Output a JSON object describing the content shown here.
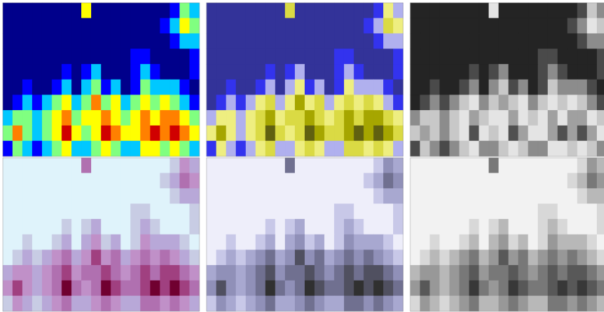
{
  "chart_data": [
    {
      "type": "contour",
      "colors": [
        "#00008b",
        "#0000ff",
        "#00c8ff",
        "#80ff80",
        "#ffff00",
        "#ff8000",
        "#d00000"
      ],
      "z": [
        [
          0,
          0,
          0,
          0,
          0,
          0,
          0,
          0,
          4,
          0,
          0,
          0,
          0,
          0,
          0,
          0,
          0,
          1,
          3,
          2
        ],
        [
          0,
          0,
          0,
          0,
          0,
          0,
          0,
          0,
          0,
          0,
          0,
          0,
          0,
          0,
          0,
          0,
          1,
          2,
          4,
          3
        ],
        [
          0,
          0,
          0,
          0,
          0,
          0,
          0,
          0,
          0,
          0,
          0,
          0,
          0,
          0,
          0,
          0,
          0,
          1,
          2,
          2
        ],
        [
          0,
          0,
          0,
          0,
          0,
          0,
          0,
          0,
          0,
          0,
          0,
          0,
          0,
          1,
          1,
          0,
          0,
          0,
          0,
          1
        ],
        [
          0,
          0,
          0,
          0,
          0,
          0,
          1,
          0,
          1,
          2,
          0,
          0,
          0,
          1,
          2,
          1,
          0,
          0,
          0,
          1
        ],
        [
          0,
          0,
          1,
          0,
          0,
          1,
          2,
          0,
          2,
          3,
          1,
          2,
          0,
          1,
          3,
          2,
          2,
          2,
          1,
          0
        ],
        [
          0,
          1,
          2,
          1,
          2,
          3,
          4,
          2,
          3,
          5,
          3,
          4,
          2,
          3,
          4,
          3,
          4,
          3,
          2,
          1
        ],
        [
          2,
          3,
          3,
          2,
          3,
          4,
          5,
          3,
          4,
          4,
          5,
          4,
          3,
          4,
          5,
          4,
          5,
          5,
          4,
          3
        ],
        [
          3,
          5,
          3,
          2,
          3,
          4,
          6,
          4,
          3,
          4,
          6,
          5,
          4,
          4,
          5,
          6,
          5,
          6,
          5,
          4
        ],
        [
          1,
          3,
          2,
          1,
          2,
          3,
          4,
          2,
          2,
          3,
          4,
          3,
          2,
          2,
          4,
          4,
          3,
          4,
          3,
          2
        ]
      ]
    },
    {
      "type": "contour",
      "colors": [
        "#333399",
        "#3333ee",
        "#b0b0ee",
        "#eeee80",
        "#dada44",
        "#a6a600",
        "#606010"
      ],
      "z": [
        [
          0,
          0,
          0,
          0,
          0,
          0,
          0,
          0,
          4,
          0,
          0,
          0,
          0,
          0,
          0,
          0,
          0,
          1,
          3,
          2
        ],
        [
          0,
          0,
          0,
          0,
          0,
          0,
          0,
          0,
          0,
          0,
          0,
          0,
          0,
          0,
          0,
          0,
          1,
          2,
          4,
          3
        ],
        [
          0,
          0,
          0,
          0,
          0,
          0,
          0,
          0,
          0,
          0,
          0,
          0,
          0,
          0,
          0,
          0,
          0,
          1,
          2,
          2
        ],
        [
          0,
          0,
          0,
          0,
          0,
          0,
          0,
          0,
          0,
          0,
          0,
          0,
          0,
          1,
          1,
          0,
          0,
          0,
          0,
          1
        ],
        [
          0,
          0,
          0,
          0,
          0,
          0,
          1,
          0,
          1,
          2,
          0,
          0,
          0,
          1,
          2,
          1,
          0,
          0,
          0,
          1
        ],
        [
          0,
          0,
          1,
          0,
          0,
          1,
          2,
          0,
          2,
          3,
          1,
          2,
          0,
          1,
          3,
          2,
          2,
          2,
          1,
          0
        ],
        [
          0,
          1,
          2,
          1,
          2,
          3,
          4,
          2,
          3,
          5,
          3,
          4,
          2,
          3,
          4,
          3,
          4,
          3,
          2,
          1
        ],
        [
          2,
          3,
          3,
          2,
          3,
          4,
          5,
          3,
          4,
          4,
          5,
          4,
          3,
          4,
          5,
          4,
          5,
          5,
          4,
          3
        ],
        [
          3,
          5,
          3,
          2,
          3,
          4,
          6,
          4,
          3,
          4,
          6,
          5,
          4,
          4,
          5,
          6,
          5,
          6,
          5,
          4
        ],
        [
          1,
          3,
          2,
          1,
          2,
          3,
          4,
          2,
          2,
          3,
          4,
          3,
          2,
          2,
          4,
          4,
          3,
          4,
          3,
          2
        ]
      ]
    },
    {
      "type": "contour",
      "colors": [
        "#242424",
        "#4a4a4a",
        "#8c8c8c",
        "#c8c8c8",
        "#e4e4e4",
        "#a0a0a0",
        "#505050"
      ],
      "z": [
        [
          0,
          0,
          0,
          0,
          0,
          0,
          0,
          0,
          4,
          0,
          0,
          0,
          0,
          0,
          0,
          0,
          0,
          1,
          3,
          2
        ],
        [
          0,
          0,
          0,
          0,
          0,
          0,
          0,
          0,
          0,
          0,
          0,
          0,
          0,
          0,
          0,
          0,
          1,
          2,
          4,
          3
        ],
        [
          0,
          0,
          0,
          0,
          0,
          0,
          0,
          0,
          0,
          0,
          0,
          0,
          0,
          0,
          0,
          0,
          0,
          1,
          2,
          2
        ],
        [
          0,
          0,
          0,
          0,
          0,
          0,
          0,
          0,
          0,
          0,
          0,
          0,
          0,
          1,
          1,
          0,
          0,
          0,
          0,
          1
        ],
        [
          0,
          0,
          0,
          0,
          0,
          0,
          1,
          0,
          1,
          2,
          0,
          0,
          0,
          1,
          2,
          1,
          0,
          0,
          0,
          1
        ],
        [
          0,
          0,
          1,
          0,
          0,
          1,
          2,
          0,
          2,
          3,
          1,
          2,
          0,
          1,
          3,
          2,
          2,
          2,
          1,
          0
        ],
        [
          0,
          1,
          2,
          1,
          2,
          3,
          4,
          2,
          3,
          5,
          3,
          4,
          2,
          3,
          4,
          3,
          4,
          3,
          2,
          1
        ],
        [
          2,
          3,
          3,
          2,
          3,
          4,
          5,
          3,
          4,
          4,
          5,
          4,
          3,
          4,
          5,
          4,
          5,
          5,
          4,
          3
        ],
        [
          3,
          5,
          3,
          2,
          3,
          4,
          6,
          4,
          3,
          4,
          6,
          5,
          4,
          4,
          5,
          6,
          5,
          6,
          5,
          4
        ],
        [
          1,
          3,
          2,
          1,
          2,
          3,
          4,
          2,
          2,
          3,
          4,
          3,
          2,
          2,
          4,
          4,
          3,
          4,
          3,
          2
        ]
      ]
    },
    {
      "type": "contour",
      "colors": [
        "#dff3fb",
        "#c8cce4",
        "#b8a8d8",
        "#c090c8",
        "#b070b0",
        "#a04080",
        "#700030"
      ],
      "z": [
        [
          0,
          0,
          0,
          0,
          0,
          0,
          0,
          0,
          4,
          0,
          0,
          0,
          0,
          0,
          0,
          0,
          0,
          1,
          3,
          2
        ],
        [
          0,
          0,
          0,
          0,
          0,
          0,
          0,
          0,
          0,
          0,
          0,
          0,
          0,
          0,
          0,
          0,
          1,
          2,
          4,
          3
        ],
        [
          0,
          0,
          0,
          0,
          0,
          0,
          0,
          0,
          0,
          0,
          0,
          0,
          0,
          0,
          0,
          0,
          0,
          1,
          2,
          2
        ],
        [
          0,
          0,
          0,
          0,
          0,
          0,
          0,
          0,
          0,
          0,
          0,
          0,
          0,
          1,
          1,
          0,
          0,
          0,
          0,
          1
        ],
        [
          0,
          0,
          0,
          0,
          0,
          0,
          1,
          0,
          1,
          2,
          0,
          0,
          0,
          1,
          2,
          1,
          0,
          0,
          0,
          1
        ],
        [
          0,
          0,
          1,
          0,
          0,
          1,
          2,
          0,
          2,
          3,
          1,
          2,
          0,
          1,
          3,
          2,
          2,
          2,
          1,
          0
        ],
        [
          0,
          1,
          2,
          1,
          2,
          3,
          4,
          2,
          3,
          5,
          3,
          4,
          2,
          3,
          4,
          3,
          4,
          3,
          2,
          1
        ],
        [
          2,
          3,
          3,
          2,
          3,
          4,
          5,
          3,
          4,
          4,
          5,
          4,
          3,
          4,
          5,
          4,
          5,
          5,
          4,
          3
        ],
        [
          3,
          5,
          3,
          2,
          3,
          4,
          6,
          4,
          3,
          4,
          6,
          5,
          4,
          4,
          5,
          6,
          5,
          6,
          5,
          4
        ],
        [
          1,
          3,
          2,
          1,
          2,
          3,
          4,
          2,
          2,
          3,
          4,
          3,
          2,
          2,
          4,
          4,
          3,
          4,
          3,
          2
        ]
      ]
    },
    {
      "type": "contour",
      "colors": [
        "#eeeefa",
        "#c8c8e8",
        "#a8a8d0",
        "#9090b8",
        "#707090",
        "#505060",
        "#303030"
      ],
      "z": [
        [
          0,
          0,
          0,
          0,
          0,
          0,
          0,
          0,
          4,
          0,
          0,
          0,
          0,
          0,
          0,
          0,
          0,
          1,
          3,
          2
        ],
        [
          0,
          0,
          0,
          0,
          0,
          0,
          0,
          0,
          0,
          0,
          0,
          0,
          0,
          0,
          0,
          0,
          1,
          2,
          4,
          3
        ],
        [
          0,
          0,
          0,
          0,
          0,
          0,
          0,
          0,
          0,
          0,
          0,
          0,
          0,
          0,
          0,
          0,
          0,
          1,
          2,
          2
        ],
        [
          0,
          0,
          0,
          0,
          0,
          0,
          0,
          0,
          0,
          0,
          0,
          0,
          0,
          1,
          1,
          0,
          0,
          0,
          0,
          1
        ],
        [
          0,
          0,
          0,
          0,
          0,
          0,
          1,
          0,
          1,
          2,
          0,
          0,
          0,
          1,
          2,
          1,
          0,
          0,
          0,
          1
        ],
        [
          0,
          0,
          1,
          0,
          0,
          1,
          2,
          0,
          2,
          3,
          1,
          2,
          0,
          1,
          3,
          2,
          2,
          2,
          1,
          0
        ],
        [
          0,
          1,
          2,
          1,
          2,
          3,
          4,
          2,
          3,
          5,
          3,
          4,
          2,
          3,
          4,
          3,
          4,
          3,
          2,
          1
        ],
        [
          2,
          3,
          3,
          2,
          3,
          4,
          5,
          3,
          4,
          4,
          5,
          4,
          3,
          4,
          5,
          4,
          5,
          5,
          4,
          3
        ],
        [
          3,
          5,
          3,
          2,
          3,
          4,
          6,
          4,
          3,
          4,
          6,
          5,
          4,
          4,
          5,
          6,
          5,
          6,
          5,
          4
        ],
        [
          1,
          3,
          2,
          1,
          2,
          3,
          4,
          2,
          2,
          3,
          4,
          3,
          2,
          2,
          4,
          4,
          3,
          4,
          3,
          2
        ]
      ]
    },
    {
      "type": "contour",
      "colors": [
        "#f2f2f2",
        "#d8d8d8",
        "#b8b8b8",
        "#989898",
        "#787878",
        "#585858",
        "#383838"
      ],
      "z": [
        [
          0,
          0,
          0,
          0,
          0,
          0,
          0,
          0,
          4,
          0,
          0,
          0,
          0,
          0,
          0,
          0,
          0,
          1,
          3,
          2
        ],
        [
          0,
          0,
          0,
          0,
          0,
          0,
          0,
          0,
          0,
          0,
          0,
          0,
          0,
          0,
          0,
          0,
          1,
          2,
          4,
          3
        ],
        [
          0,
          0,
          0,
          0,
          0,
          0,
          0,
          0,
          0,
          0,
          0,
          0,
          0,
          0,
          0,
          0,
          0,
          1,
          2,
          2
        ],
        [
          0,
          0,
          0,
          0,
          0,
          0,
          0,
          0,
          0,
          0,
          0,
          0,
          0,
          1,
          1,
          0,
          0,
          0,
          0,
          1
        ],
        [
          0,
          0,
          0,
          0,
          0,
          0,
          1,
          0,
          1,
          2,
          0,
          0,
          0,
          1,
          2,
          1,
          0,
          0,
          0,
          1
        ],
        [
          0,
          0,
          1,
          0,
          0,
          1,
          2,
          0,
          2,
          3,
          1,
          2,
          0,
          1,
          3,
          2,
          2,
          2,
          1,
          0
        ],
        [
          0,
          1,
          2,
          1,
          2,
          3,
          4,
          2,
          3,
          5,
          3,
          4,
          2,
          3,
          4,
          3,
          4,
          3,
          2,
          1
        ],
        [
          2,
          3,
          3,
          2,
          3,
          4,
          5,
          3,
          4,
          4,
          5,
          4,
          3,
          4,
          5,
          4,
          5,
          5,
          4,
          3
        ],
        [
          3,
          5,
          3,
          2,
          3,
          4,
          6,
          4,
          3,
          4,
          6,
          5,
          4,
          4,
          5,
          6,
          5,
          6,
          5,
          4
        ],
        [
          1,
          3,
          2,
          1,
          2,
          3,
          4,
          2,
          2,
          3,
          4,
          3,
          2,
          2,
          4,
          4,
          3,
          4,
          3,
          2
        ]
      ]
    }
  ]
}
